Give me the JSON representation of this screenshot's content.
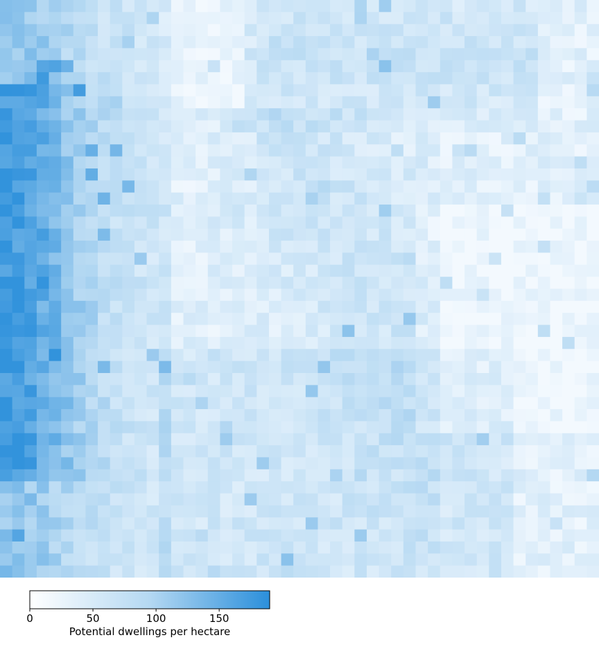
{
  "colorbar": {
    "label": "Potential dwellings per hectare",
    "min": 0,
    "max": 190,
    "ticks": [
      0,
      50,
      100,
      150
    ],
    "color_low": "#ffffff",
    "color_mid": "#9dcbee",
    "color_high": "#2b8fdb"
  },
  "chart_data": {
    "type": "heatmap",
    "value_label": "Potential dwellings per hectare",
    "range": [
      0,
      190
    ],
    "columns": 49,
    "rows": 48,
    "grid": false,
    "note_colors": "sequential white-to-blue scale; high-density zone on west/left side, low-density zone in the east and north-center"
  }
}
